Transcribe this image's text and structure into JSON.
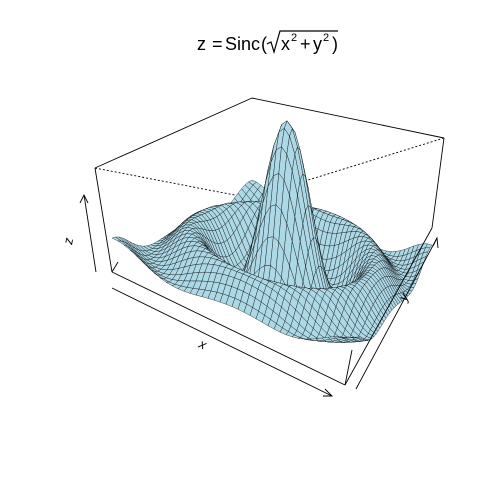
{
  "chart_data": {
    "type": "surface3d",
    "function": "sinc",
    "title": {
      "lhs": "z",
      "equals": "=",
      "fn": "Sinc",
      "open": "(",
      "x": "x",
      "plus": "+",
      "y": "y",
      "exp": "2",
      "close": ")"
    },
    "xlabel": "x",
    "ylabel": "y",
    "zlabel": "z",
    "xlim": [
      -10,
      10
    ],
    "ylim": [
      -10,
      10
    ],
    "zlim": [
      -0.25,
      1
    ],
    "grid_lines": 40,
    "colors": {
      "surface": "#add8e6",
      "mesh": "#000000",
      "box": "#000000",
      "background": "#ffffff"
    }
  }
}
